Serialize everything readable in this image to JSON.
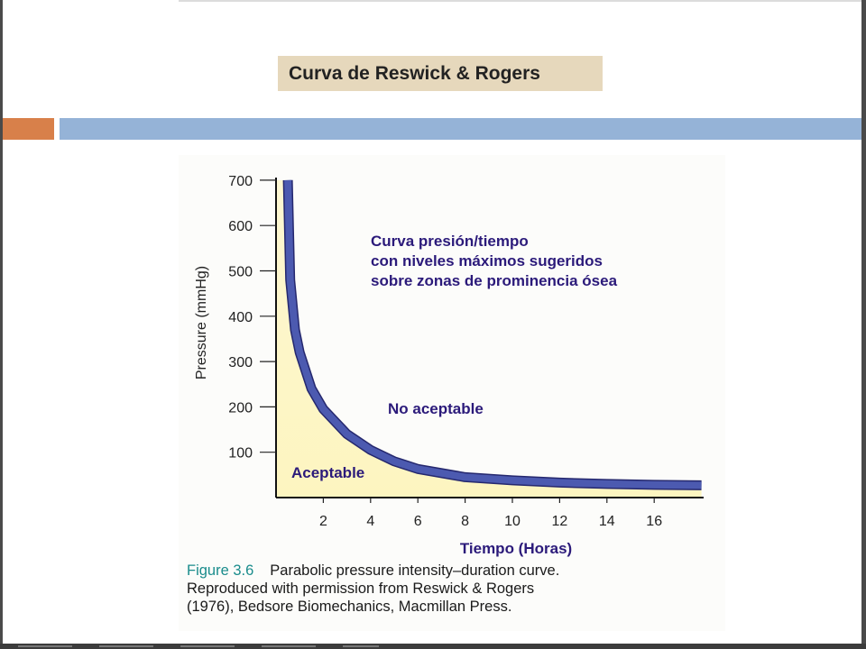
{
  "slide": {
    "title": "Curva de Reswick & Rogers"
  },
  "colors": {
    "title_bg": "#e6d8bc",
    "accent_orange": "#d8804a",
    "accent_blue": "#95b3d7",
    "curve_stroke": "#4c5ab0",
    "acceptable_fill": "#fdf5c0",
    "annotation_text": "#2b1a7a"
  },
  "chart_data": {
    "type": "line",
    "title": "",
    "ylabel": "Pressure (mmHg)",
    "xlabel": "Tiempo (Horas)",
    "xlim": [
      0,
      18
    ],
    "ylim": [
      0,
      700
    ],
    "xticks": [
      "2",
      "4",
      "6",
      "8",
      "10",
      "12",
      "14",
      "16"
    ],
    "xtick_values": [
      2,
      4,
      6,
      8,
      10,
      12,
      14,
      16
    ],
    "yticks": [
      "100",
      "200",
      "300",
      "400",
      "500",
      "600",
      "700"
    ],
    "ytick_values": [
      100,
      200,
      300,
      400,
      500,
      600,
      700
    ],
    "series": [
      {
        "x": [
          0.5,
          0.6,
          0.8,
          1,
          1.5,
          2,
          3,
          4,
          5,
          6,
          8,
          10,
          12,
          14,
          16,
          18
        ],
        "y": [
          700,
          480,
          370,
          320,
          240,
          195,
          140,
          105,
          80,
          63,
          45,
          38,
          33,
          30,
          28,
          27
        ]
      }
    ],
    "annotations": {
      "region_label": [
        "Curva presión/tiempo",
        "con niveles máximos sugeridos",
        "sobre zonas de prominencia ósea"
      ],
      "unacceptable": "No aceptable",
      "acceptable": "Aceptable"
    }
  },
  "caption": {
    "label": "Figure 3.6",
    "lines": [
      "Parabolic pressure intensity–duration curve.",
      "Reproduced with permission from Reswick & Rogers",
      "(1976), Bedsore Biomechanics, Macmillan Press."
    ]
  }
}
